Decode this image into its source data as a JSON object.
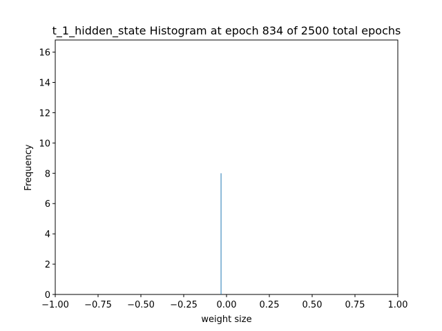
{
  "chart_data": {
    "type": "bar",
    "title": "t_1_hidden_state Histogram at epoch 834 of 2500 total epochs",
    "xlabel": "weight size",
    "ylabel": "Frequency",
    "xlim": [
      -1.0,
      1.0
    ],
    "ylim": [
      0,
      16.8
    ],
    "x_ticks": [
      -1.0,
      -0.75,
      -0.5,
      -0.25,
      0.0,
      0.25,
      0.5,
      0.75,
      1.0
    ],
    "x_tick_labels": [
      "−1.00",
      "−0.75",
      "−0.50",
      "−0.25",
      "0.00",
      "0.25",
      "0.50",
      "0.75",
      "1.00"
    ],
    "y_ticks": [
      0,
      2,
      4,
      6,
      8,
      10,
      12,
      14,
      16
    ],
    "y_tick_labels": [
      "0",
      "2",
      "4",
      "6",
      "8",
      "10",
      "12",
      "14",
      "16"
    ],
    "bins": [
      {
        "x_start": -0.034,
        "x_end": -0.03,
        "value": 8
      }
    ],
    "bar_color": "#1f77b4",
    "grid": false,
    "legend": "none"
  }
}
